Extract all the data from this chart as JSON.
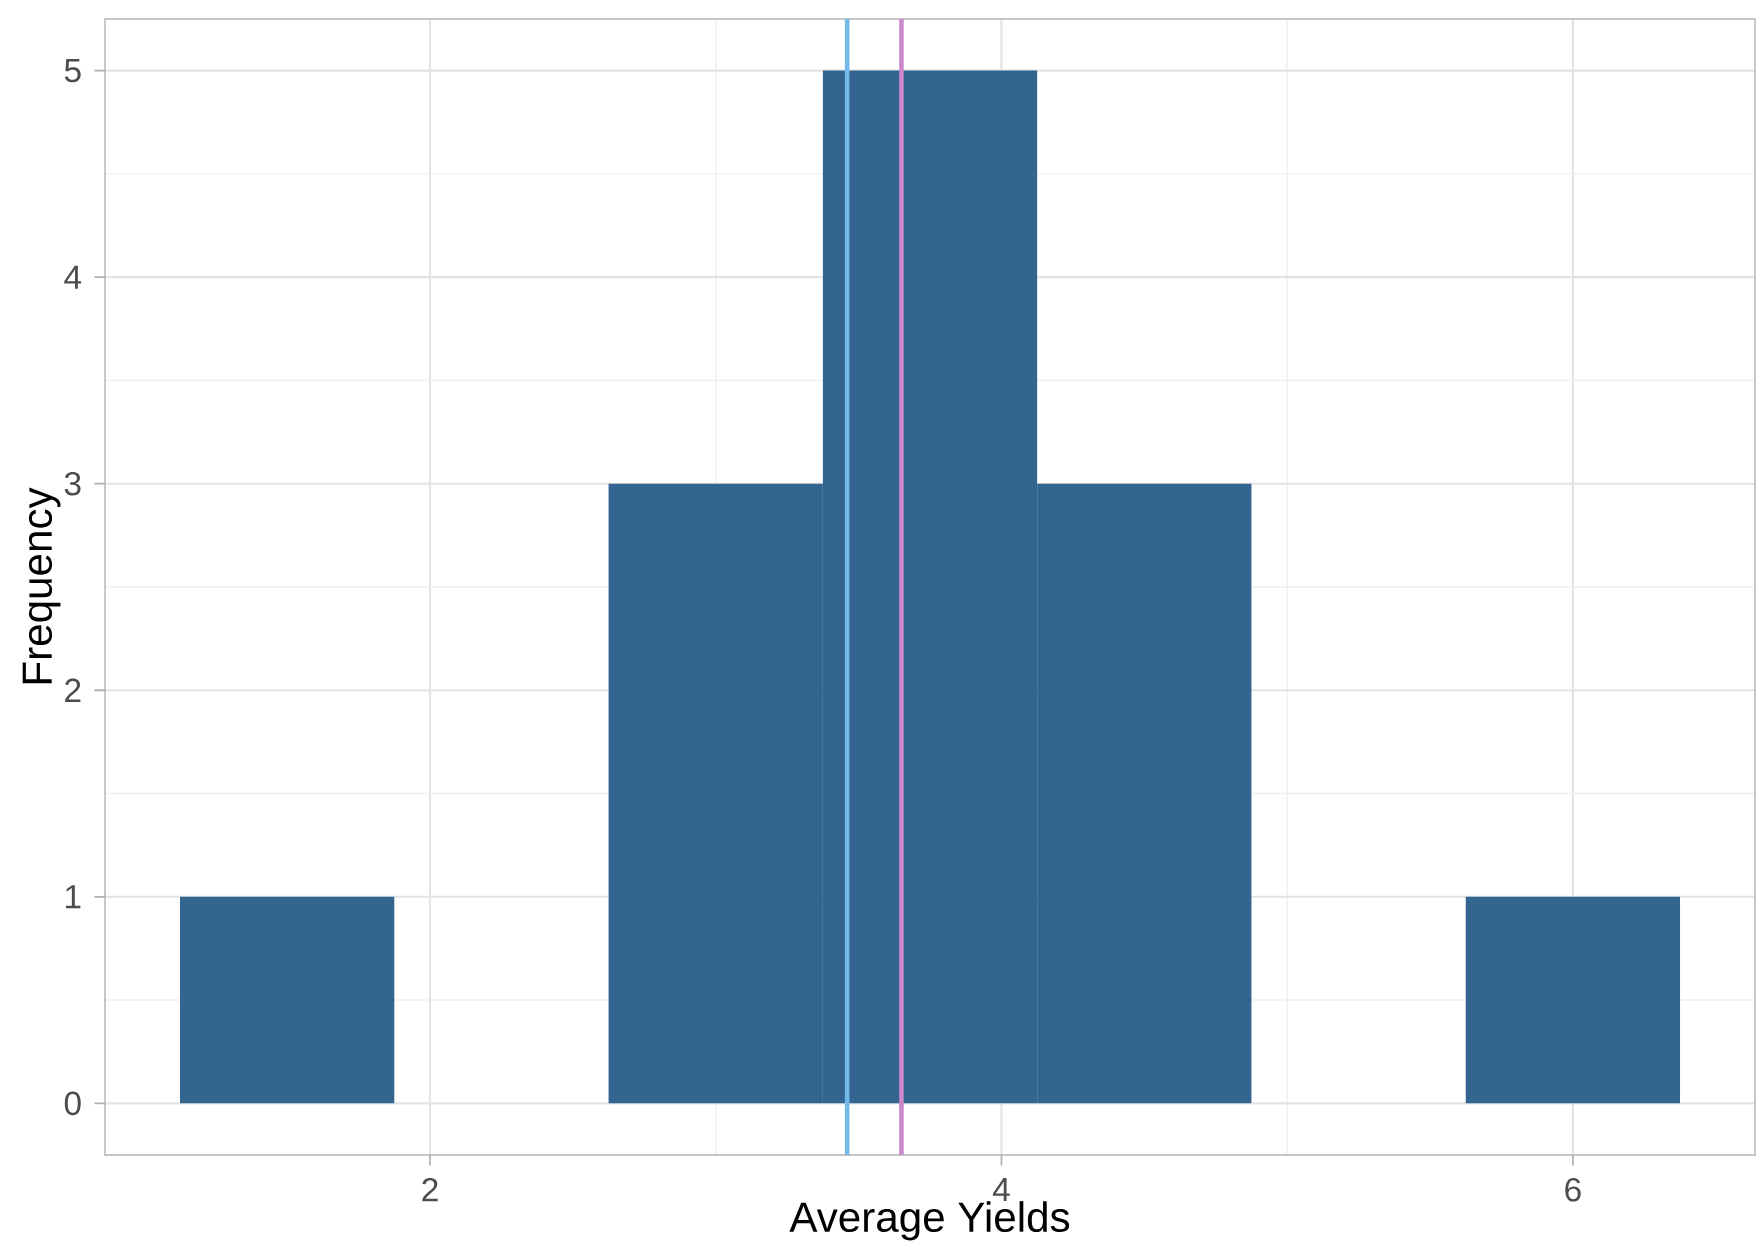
{
  "chart_data": {
    "type": "histogram",
    "xlabel": "Average Yields",
    "ylabel": "Frequency",
    "bins": [
      1.125,
      1.875,
      2.625,
      3.375,
      4.125,
      4.875,
      5.625,
      6.375
    ],
    "values": [
      1,
      0,
      3,
      5,
      3,
      0,
      1
    ],
    "color": "#336590",
    "xlim": [
      0.8625,
      6.6375
    ],
    "ylim": [
      -0.25,
      5.25
    ],
    "xticks": [
      2,
      4,
      6
    ],
    "yticks": [
      0,
      1,
      2,
      3,
      4,
      5
    ],
    "grid": true,
    "ref_lines": [
      {
        "axis": "x",
        "value": 3.46,
        "color": "#74b9e8"
      },
      {
        "axis": "x",
        "value": 3.65,
        "color": "#cc88cc"
      }
    ]
  }
}
